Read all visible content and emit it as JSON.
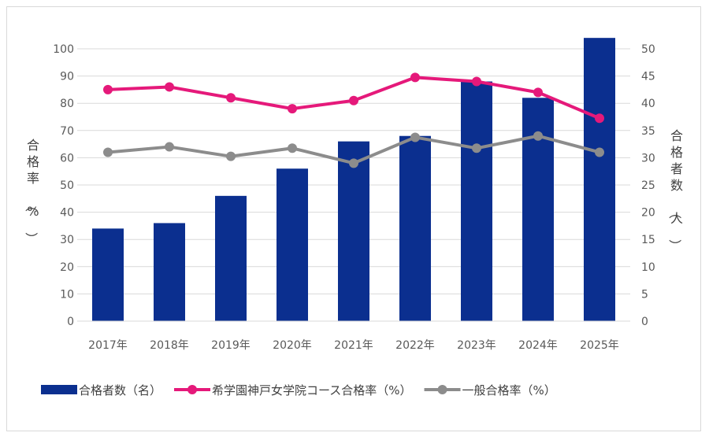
{
  "chart_data": {
    "type": "bar",
    "categories": [
      "2017年",
      "2018年",
      "2019年",
      "2020年",
      "2021年",
      "2022年",
      "2023年",
      "2024年",
      "2025年"
    ],
    "left_axis": {
      "label": "合格率（%）",
      "ylim": [
        0,
        100
      ],
      "ticks": [
        "0",
        "10",
        "20",
        "30",
        "40",
        "50",
        "60",
        "70",
        "80",
        "90",
        "100"
      ]
    },
    "right_axis": {
      "label": "合格者数（人）",
      "ylim": [
        0,
        50
      ],
      "ticks": [
        "0",
        "5",
        "10",
        "15",
        "20",
        "25",
        "30",
        "35",
        "40",
        "45",
        "50"
      ]
    },
    "series": [
      {
        "name": "合格者数（名）",
        "kind": "bar",
        "axis": "right",
        "color": "#0b2f8f",
        "values": [
          17,
          18,
          23,
          28,
          33,
          34,
          44,
          41,
          52
        ]
      },
      {
        "name": "希学園神戸女学院コース合格率（%）",
        "kind": "line",
        "axis": "left",
        "color": "#e5197a",
        "values": [
          85,
          86,
          82,
          78,
          81,
          89.5,
          88,
          84,
          74.5
        ]
      },
      {
        "name": "一般合格率（%）",
        "kind": "line",
        "axis": "left",
        "color": "#8c8c8c",
        "values": [
          62,
          64,
          60.5,
          63.5,
          58,
          67.5,
          63.5,
          68,
          62
        ]
      }
    ],
    "grid": true,
    "legend_position": "bottom"
  }
}
